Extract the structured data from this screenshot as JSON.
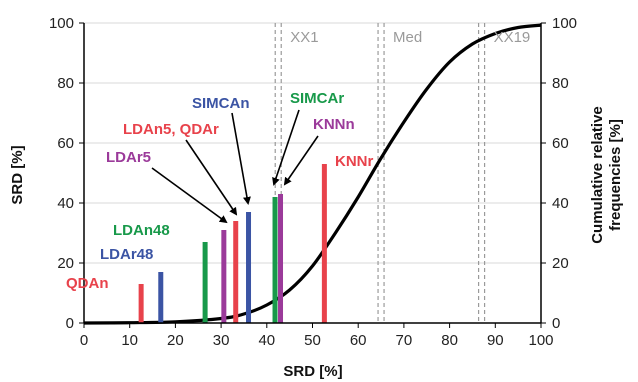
{
  "chart_data": {
    "type": "bar",
    "xlabel": "SRD [%]",
    "ylabel": "SRD [%]",
    "y2label_line1": "Cumulative relative",
    "y2label_line2": "frequencies [%]",
    "xlim": [
      0,
      100
    ],
    "ylim": [
      0,
      100
    ],
    "y2lim": [
      0,
      100
    ],
    "x_ticks": [
      "0",
      "10",
      "20",
      "30",
      "40",
      "50",
      "60",
      "70",
      "80",
      "90",
      "100"
    ],
    "y_ticks": [
      "0",
      "20",
      "40",
      "60",
      "80",
      "100"
    ],
    "y2_ticks": [
      "0",
      "20",
      "40",
      "60",
      "80",
      "100"
    ],
    "grid": "horizontal",
    "legend": "none",
    "bars": [
      {
        "label": "QDAn",
        "x": 12.5,
        "value": 13,
        "color": "#e8424b"
      },
      {
        "label": "LDAr48",
        "x": 16.8,
        "value": 17,
        "color": "#3b54a4"
      },
      {
        "label": "LDAn48",
        "x": 26.5,
        "value": 27,
        "color": "#18994a"
      },
      {
        "label": "LDAr5",
        "x": 30.6,
        "value": 31,
        "color": "#9b3a9a"
      },
      {
        "label": "LDAn5, QDAr",
        "x": 33.2,
        "value": 34,
        "color": "#e8424b"
      },
      {
        "label": "SIMCAn",
        "x": 36.0,
        "value": 37,
        "color": "#3b54a4"
      },
      {
        "label": "SIMCAr",
        "x": 41.8,
        "value": 42,
        "color": "#18994a"
      },
      {
        "label": "KNNn",
        "x": 43.0,
        "value": 43,
        "color": "#9b3a9a"
      },
      {
        "label": "KNNr",
        "x": 52.6,
        "value": 53,
        "color": "#e8424b"
      }
    ],
    "annotations": [
      {
        "label": "SIMCAn",
        "color": "#3b54a4"
      },
      {
        "label": "LDAn5, QDAr",
        "color": "#e8424b"
      },
      {
        "label": "LDAr5",
        "color": "#9b3a9a"
      },
      {
        "label": "LDAn48",
        "color": "#18994a"
      },
      {
        "label": "LDAr48",
        "color": "#3b54a4"
      },
      {
        "label": "QDAn",
        "color": "#e8424b"
      },
      {
        "label": "SIMCAr",
        "color": "#18994a"
      },
      {
        "label": "KNNn",
        "color": "#9b3a9a"
      },
      {
        "label": "KNNr",
        "color": "#e8424b"
      }
    ],
    "reference_lines": [
      {
        "label": "XX1",
        "x": 42.5
      },
      {
        "label": "Med",
        "x": 65.0
      },
      {
        "label": "XX19",
        "x": 87.0
      }
    ],
    "cumulative_curve": {
      "x": [
        0,
        10,
        20,
        30,
        35,
        40,
        45,
        50,
        55,
        60,
        65,
        70,
        75,
        80,
        85,
        90,
        95,
        100
      ],
      "y": [
        0,
        0.1,
        0.4,
        1.5,
        3,
        6,
        11,
        19,
        30,
        42,
        55,
        67,
        78,
        87,
        93,
        96.5,
        98.5,
        99.3
      ]
    }
  }
}
